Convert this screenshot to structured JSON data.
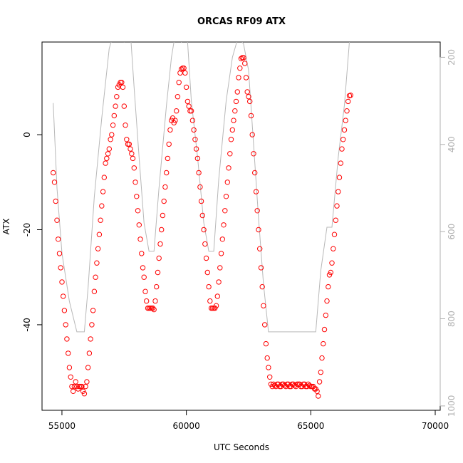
{
  "chart_data": {
    "type": "scatter",
    "title": "ORCAS RF09 ATX",
    "xlabel": "UTC Seconds",
    "ylabel": "ATX",
    "xlim": [
      54200,
      70200
    ],
    "ylim": [
      -58,
      19.5
    ],
    "x_ticks": [
      55000,
      60000,
      65000,
      70000
    ],
    "y_ticks": [
      0,
      -20,
      -40
    ],
    "y2_ticks": [
      200,
      400,
      600,
      800,
      1000
    ],
    "y2_domain": [
      1010,
      165
    ],
    "grid": false,
    "series": [
      {
        "values_description": "ATX temperature points, open red circles",
        "color": "#ff0000",
        "points": [
          [
            54650,
            -8
          ],
          [
            54700,
            -10
          ],
          [
            54750,
            -14
          ],
          [
            54800,
            -18
          ],
          [
            54850,
            -22
          ],
          [
            54900,
            -25
          ],
          [
            54950,
            -28
          ],
          [
            55000,
            -31
          ],
          [
            55050,
            -34
          ],
          [
            55100,
            -37
          ],
          [
            55150,
            -40
          ],
          [
            55200,
            -43
          ],
          [
            55250,
            -46
          ],
          [
            55300,
            -49
          ],
          [
            55350,
            -51
          ],
          [
            55400,
            -53
          ],
          [
            55450,
            -54
          ],
          [
            55500,
            -53
          ],
          [
            55550,
            -52
          ],
          [
            55600,
            -53
          ],
          [
            55650,
            -53.5
          ],
          [
            55700,
            -53
          ],
          [
            55750,
            -53
          ],
          [
            55800,
            -53
          ],
          [
            55850,
            -54
          ],
          [
            55900,
            -54.5
          ],
          [
            55950,
            -53
          ],
          [
            56000,
            -52
          ],
          [
            56050,
            -49
          ],
          [
            56100,
            -46
          ],
          [
            56150,
            -43
          ],
          [
            56200,
            -40
          ],
          [
            56250,
            -37
          ],
          [
            56300,
            -33
          ],
          [
            56350,
            -30
          ],
          [
            56400,
            -27
          ],
          [
            56450,
            -24
          ],
          [
            56500,
            -21
          ],
          [
            56550,
            -18
          ],
          [
            56600,
            -15
          ],
          [
            56650,
            -12
          ],
          [
            56700,
            -9
          ],
          [
            56750,
            -6
          ],
          [
            56800,
            -5
          ],
          [
            56850,
            -4
          ],
          [
            56900,
            -3
          ],
          [
            56950,
            -1
          ],
          [
            57000,
            0
          ],
          [
            57050,
            2
          ],
          [
            57100,
            4
          ],
          [
            57150,
            6
          ],
          [
            57200,
            8
          ],
          [
            57250,
            10
          ],
          [
            57300,
            10.5
          ],
          [
            57350,
            11
          ],
          [
            57400,
            11
          ],
          [
            57450,
            10
          ],
          [
            57500,
            6
          ],
          [
            57550,
            2
          ],
          [
            57600,
            -1
          ],
          [
            57650,
            -2
          ],
          [
            57700,
            -2
          ],
          [
            57750,
            -3
          ],
          [
            57800,
            -4
          ],
          [
            57850,
            -5
          ],
          [
            57900,
            -7
          ],
          [
            57950,
            -10
          ],
          [
            58000,
            -13
          ],
          [
            58050,
            -16
          ],
          [
            58100,
            -19
          ],
          [
            58150,
            -22
          ],
          [
            58200,
            -25
          ],
          [
            58250,
            -28
          ],
          [
            58300,
            -30
          ],
          [
            58350,
            -33
          ],
          [
            58400,
            -35
          ],
          [
            58450,
            -36.5
          ],
          [
            58500,
            -36.5
          ],
          [
            58550,
            -36.5
          ],
          [
            58600,
            -36.5
          ],
          [
            58650,
            -36.5
          ],
          [
            58700,
            -36.8
          ],
          [
            58750,
            -35
          ],
          [
            58800,
            -32
          ],
          [
            58850,
            -29
          ],
          [
            58900,
            -26
          ],
          [
            58950,
            -23
          ],
          [
            59000,
            -20
          ],
          [
            59050,
            -17
          ],
          [
            59100,
            -14
          ],
          [
            59150,
            -11
          ],
          [
            59200,
            -8
          ],
          [
            59250,
            -5
          ],
          [
            59300,
            -2
          ],
          [
            59350,
            1
          ],
          [
            59400,
            3
          ],
          [
            59450,
            3.5
          ],
          [
            59500,
            2.5
          ],
          [
            59550,
            3
          ],
          [
            59600,
            5
          ],
          [
            59650,
            8
          ],
          [
            59700,
            11
          ],
          [
            59750,
            13
          ],
          [
            59800,
            13.8
          ],
          [
            59850,
            14
          ],
          [
            59900,
            14
          ],
          [
            59950,
            13
          ],
          [
            60000,
            10
          ],
          [
            60050,
            7
          ],
          [
            60100,
            6
          ],
          [
            60150,
            5
          ],
          [
            60200,
            5
          ],
          [
            60250,
            3
          ],
          [
            60300,
            1
          ],
          [
            60350,
            -1
          ],
          [
            60400,
            -3
          ],
          [
            60450,
            -5
          ],
          [
            60500,
            -8
          ],
          [
            60550,
            -11
          ],
          [
            60600,
            -14
          ],
          [
            60650,
            -17
          ],
          [
            60700,
            -20
          ],
          [
            60750,
            -23
          ],
          [
            60800,
            -26
          ],
          [
            60850,
            -29
          ],
          [
            60900,
            -32
          ],
          [
            60950,
            -35
          ],
          [
            61000,
            -36.5
          ],
          [
            61050,
            -36.5
          ],
          [
            61100,
            -36.5
          ],
          [
            61150,
            -36.5
          ],
          [
            61200,
            -36
          ],
          [
            61250,
            -34
          ],
          [
            61300,
            -31
          ],
          [
            61350,
            -28
          ],
          [
            61400,
            -25
          ],
          [
            61450,
            -22
          ],
          [
            61500,
            -19
          ],
          [
            61550,
            -16
          ],
          [
            61600,
            -13
          ],
          [
            61650,
            -10
          ],
          [
            61700,
            -7
          ],
          [
            61750,
            -4
          ],
          [
            61800,
            -1
          ],
          [
            61850,
            1
          ],
          [
            61900,
            3
          ],
          [
            61950,
            5
          ],
          [
            62000,
            7
          ],
          [
            62050,
            9
          ],
          [
            62100,
            12
          ],
          [
            62150,
            14
          ],
          [
            62200,
            16
          ],
          [
            62250,
            16.2
          ],
          [
            62300,
            16.2
          ],
          [
            62350,
            15
          ],
          [
            62400,
            12
          ],
          [
            62450,
            9
          ],
          [
            62500,
            8
          ],
          [
            62550,
            7
          ],
          [
            62600,
            4
          ],
          [
            62650,
            0
          ],
          [
            62700,
            -4
          ],
          [
            62750,
            -8
          ],
          [
            62800,
            -12
          ],
          [
            62850,
            -16
          ],
          [
            62900,
            -20
          ],
          [
            62950,
            -24
          ],
          [
            63000,
            -28
          ],
          [
            63050,
            -32
          ],
          [
            63100,
            -36
          ],
          [
            63150,
            -40
          ],
          [
            63200,
            -44
          ],
          [
            63250,
            -47
          ],
          [
            63300,
            -49
          ],
          [
            63350,
            -51
          ],
          [
            63400,
            -52.5
          ],
          [
            63450,
            -53
          ],
          [
            63500,
            -52.5
          ],
          [
            63550,
            -52.8
          ],
          [
            63600,
            -53
          ],
          [
            63650,
            -52.5
          ],
          [
            63700,
            -52.5
          ],
          [
            63750,
            -53
          ],
          [
            63800,
            -53
          ],
          [
            63850,
            -52.5
          ],
          [
            63900,
            -52.5
          ],
          [
            63950,
            -52.8
          ],
          [
            64000,
            -53
          ],
          [
            64050,
            -52.5
          ],
          [
            64100,
            -52.5
          ],
          [
            64150,
            -53
          ],
          [
            64200,
            -53
          ],
          [
            64250,
            -52.5
          ],
          [
            64300,
            -52.5
          ],
          [
            64350,
            -52.8
          ],
          [
            64400,
            -53
          ],
          [
            64450,
            -52.5
          ],
          [
            64500,
            -52.5
          ],
          [
            64550,
            -52.5
          ],
          [
            64600,
            -53
          ],
          [
            64650,
            -53
          ],
          [
            64700,
            -52.5
          ],
          [
            64750,
            -52.5
          ],
          [
            64800,
            -53
          ],
          [
            64850,
            -53
          ],
          [
            64900,
            -52.5
          ],
          [
            64950,
            -52.8
          ],
          [
            65000,
            -53
          ],
          [
            65050,
            -53
          ],
          [
            65100,
            -53
          ],
          [
            65150,
            -53.5
          ],
          [
            65200,
            -53.5
          ],
          [
            65250,
            -54
          ],
          [
            65300,
            -55
          ],
          [
            65350,
            -52
          ],
          [
            65400,
            -50
          ],
          [
            65450,
            -47
          ],
          [
            65500,
            -44
          ],
          [
            65550,
            -41
          ],
          [
            65600,
            -38
          ],
          [
            65650,
            -35
          ],
          [
            65700,
            -32
          ],
          [
            65750,
            -29.5
          ],
          [
            65800,
            -29
          ],
          [
            65850,
            -27
          ],
          [
            65900,
            -24
          ],
          [
            65950,
            -21
          ],
          [
            66000,
            -18
          ],
          [
            66050,
            -15
          ],
          [
            66100,
            -12
          ],
          [
            66150,
            -9
          ],
          [
            66200,
            -6
          ],
          [
            66250,
            -3
          ],
          [
            66300,
            -1
          ],
          [
            66350,
            1
          ],
          [
            66400,
            3
          ],
          [
            66450,
            5
          ],
          [
            66500,
            7
          ],
          [
            66550,
            8.2
          ],
          [
            66600,
            8.3
          ]
        ]
      },
      {
        "values_description": "secondary axis trace, grey line, right axis units",
        "color": "#b8b8b8",
        "points": [
          [
            54650,
            305
          ],
          [
            54800,
            500
          ],
          [
            55000,
            650
          ],
          [
            55300,
            760
          ],
          [
            55600,
            830
          ],
          [
            55900,
            830
          ],
          [
            56050,
            730
          ],
          [
            56300,
            520
          ],
          [
            56600,
            340
          ],
          [
            56900,
            180
          ],
          [
            57300,
            100
          ],
          [
            57500,
            165
          ],
          [
            57700,
            100
          ],
          [
            57900,
            270
          ],
          [
            58100,
            430
          ],
          [
            58300,
            580
          ],
          [
            58500,
            645
          ],
          [
            58700,
            645
          ],
          [
            58900,
            500
          ],
          [
            59200,
            310
          ],
          [
            59400,
            200
          ],
          [
            59600,
            130
          ],
          [
            59800,
            165
          ],
          [
            60000,
            120
          ],
          [
            60200,
            300
          ],
          [
            60450,
            430
          ],
          [
            60700,
            580
          ],
          [
            60900,
            645
          ],
          [
            61100,
            645
          ],
          [
            61300,
            480
          ],
          [
            61600,
            300
          ],
          [
            61850,
            200
          ],
          [
            62100,
            150
          ],
          [
            62300,
            170
          ],
          [
            62500,
            230
          ],
          [
            62700,
            400
          ],
          [
            62900,
            570
          ],
          [
            63100,
            720
          ],
          [
            63300,
            830
          ],
          [
            63600,
            830
          ],
          [
            64200,
            830
          ],
          [
            64900,
            830
          ],
          [
            65200,
            830
          ],
          [
            65400,
            690
          ],
          [
            65650,
            590
          ],
          [
            65850,
            590
          ],
          [
            66100,
            430
          ],
          [
            66350,
            310
          ],
          [
            66550,
            165
          ]
        ]
      }
    ]
  }
}
